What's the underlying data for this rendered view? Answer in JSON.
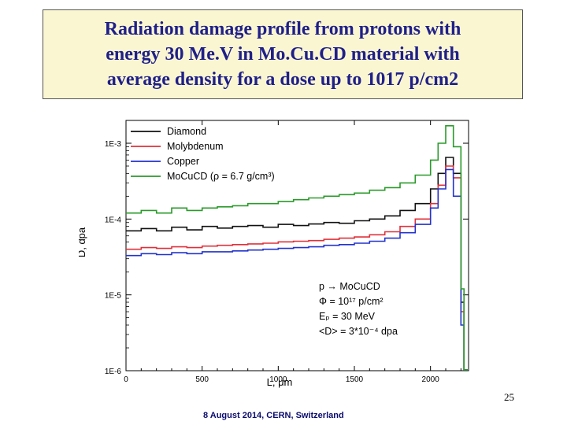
{
  "slide": {
    "title_lines": [
      "Radiation damage profile from protons with",
      "energy 30 Me.V in Mo.Cu.CD material with",
      "average density for a dose up to 1017 p/cm2"
    ],
    "page_number": "25",
    "footer": "8 August 2014, CERN, Switzerland"
  },
  "chart_data": {
    "type": "line",
    "xlabel": "L, μm",
    "ylabel": "D, dpa",
    "x_scale": "linear",
    "y_scale": "log",
    "xlim": [
      0,
      2250
    ],
    "ylim": [
      1e-06,
      0.002
    ],
    "x_ticks": [
      0,
      500,
      1000,
      1500,
      2000
    ],
    "y_ticks": [
      1e-06,
      1e-05,
      0.0001,
      0.001
    ],
    "y_tick_labels": [
      "1E-6",
      "1E-5",
      "1E-4",
      "1E-3"
    ],
    "legend_position": "top-left",
    "x": [
      0,
      100,
      200,
      300,
      400,
      500,
      600,
      700,
      800,
      900,
      1000,
      1100,
      1200,
      1300,
      1400,
      1500,
      1600,
      1700,
      1800,
      1900,
      2000,
      2050,
      2100,
      2150,
      2200,
      2220
    ],
    "series": [
      {
        "name": "Diamond",
        "color": "#111111",
        "values": [
          7e-05,
          7.5e-05,
          7e-05,
          7.8e-05,
          7.2e-05,
          8e-05,
          7.6e-05,
          8e-05,
          8.2e-05,
          7.8e-05,
          8.5e-05,
          8.2e-05,
          8.6e-05,
          9e-05,
          8.8e-05,
          9.5e-05,
          0.0001,
          0.00011,
          0.00013,
          0.00016,
          0.00025,
          0.0004,
          0.00065,
          0.0004,
          8e-06,
          1e-06
        ]
      },
      {
        "name": "Molybdenum",
        "color": "#e0303a",
        "values": [
          4e-05,
          4.2e-05,
          4.1e-05,
          4.3e-05,
          4.2e-05,
          4.4e-05,
          4.5e-05,
          4.6e-05,
          4.7e-05,
          4.8e-05,
          5e-05,
          5.1e-05,
          5.2e-05,
          5.4e-05,
          5.6e-05,
          5.8e-05,
          6.2e-05,
          6.8e-05,
          8e-05,
          0.0001,
          0.00016,
          0.00028,
          0.0005,
          0.00035,
          6e-06,
          1e-06
        ]
      },
      {
        "name": "Copper",
        "color": "#2233cc",
        "values": [
          3.3e-05,
          3.5e-05,
          3.4e-05,
          3.6e-05,
          3.5e-05,
          3.7e-05,
          3.7e-05,
          3.8e-05,
          3.9e-05,
          4e-05,
          4.1e-05,
          4.2e-05,
          4.3e-05,
          4.5e-05,
          4.6e-05,
          4.8e-05,
          5.1e-05,
          5.6e-05,
          6.6e-05,
          8.5e-05,
          0.00014,
          0.00025,
          0.00045,
          0.0002,
          4e-06,
          1e-06
        ]
      },
      {
        "name": "MoCuCD (ρ = 6.7 g/cm³)",
        "color": "#2a9a2a",
        "values": [
          0.00012,
          0.00013,
          0.00012,
          0.00014,
          0.00013,
          0.00014,
          0.000145,
          0.00015,
          0.00016,
          0.00016,
          0.00017,
          0.00018,
          0.00019,
          0.0002,
          0.00021,
          0.00022,
          0.00024,
          0.00026,
          0.0003,
          0.00038,
          0.0006,
          0.001,
          0.0017,
          0.0009,
          1.2e-05,
          1e-06
        ]
      }
    ],
    "annotations": [
      "p → MoCuCD",
      "Φ = 10¹⁷ p/cm²",
      "Eₚ = 30 MeV",
      "<D> = 3*10⁻⁴ dpa"
    ]
  }
}
